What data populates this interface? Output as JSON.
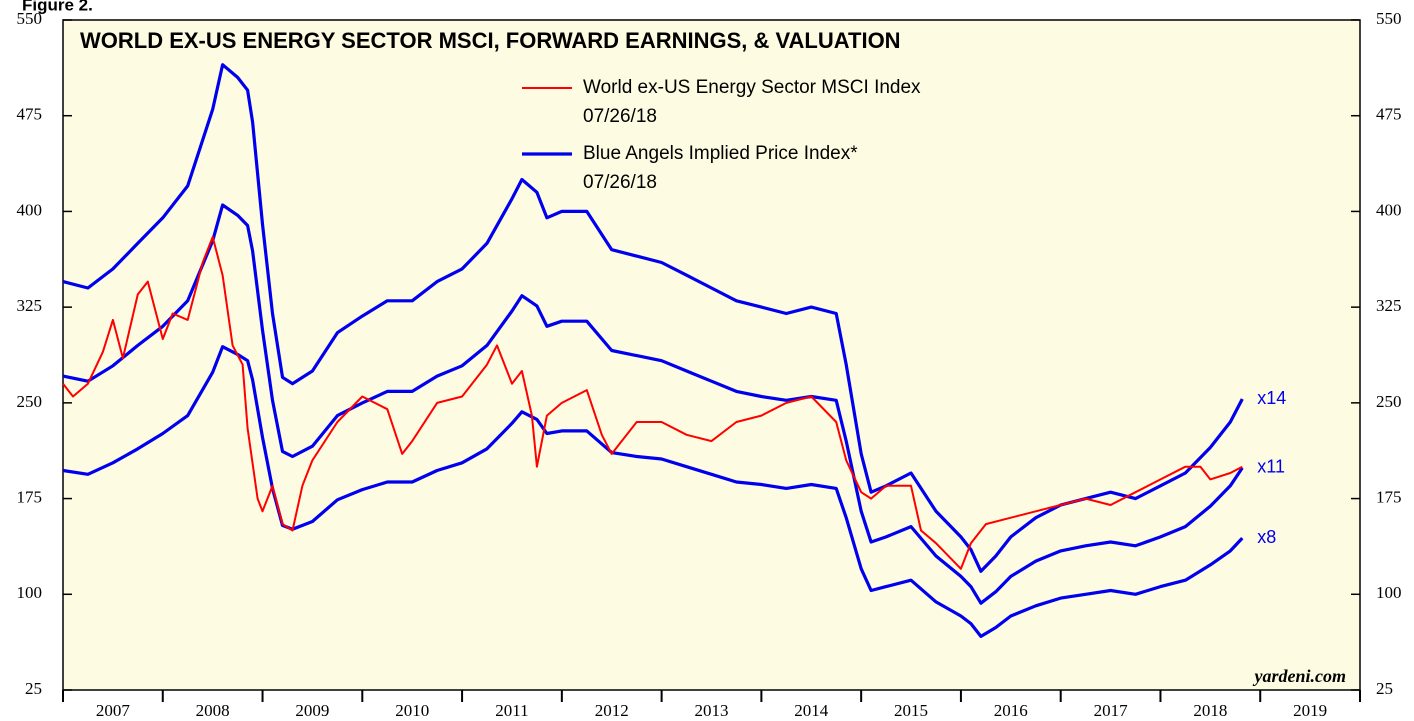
{
  "figure_label": "Figure 2.",
  "chart_data": {
    "type": "line",
    "title": "WORLD EX-US ENERGY SECTOR MSCI, FORWARD EARNINGS, & VALUATION",
    "source": "yardeni.com",
    "xlim": [
      2007,
      2020
    ],
    "xticks": [
      2007,
      2008,
      2009,
      2010,
      2011,
      2012,
      2013,
      2014,
      2015,
      2016,
      2017,
      2018,
      2019,
      2020
    ],
    "year_labels": [
      {
        "value": 2007.5,
        "label": "2007"
      },
      {
        "value": 2008.5,
        "label": "2008"
      },
      {
        "value": 2009.5,
        "label": "2009"
      },
      {
        "value": 2010.5,
        "label": "2010"
      },
      {
        "value": 2011.5,
        "label": "2011"
      },
      {
        "value": 2012.5,
        "label": "2012"
      },
      {
        "value": 2013.5,
        "label": "2013"
      },
      {
        "value": 2014.5,
        "label": "2014"
      },
      {
        "value": 2015.5,
        "label": "2015"
      },
      {
        "value": 2016.5,
        "label": "2016"
      },
      {
        "value": 2017.5,
        "label": "2017"
      },
      {
        "value": 2018.5,
        "label": "2018"
      },
      {
        "value": 2019.5,
        "label": "2019"
      }
    ],
    "ylim": [
      25,
      550
    ],
    "yticks": [
      25,
      100,
      175,
      250,
      325,
      400,
      475,
      550
    ],
    "y2lim": [
      25,
      550
    ],
    "y2ticks": [
      25,
      100,
      175,
      250,
      325,
      400,
      475,
      550
    ],
    "series": [
      {
        "name": "World ex-US Energy Sector MSCI Index",
        "date": "07/26/18",
        "color": "#ff0000",
        "x": [
          2007.0,
          2007.1,
          2007.25,
          2007.4,
          2007.5,
          2007.6,
          2007.75,
          2007.85,
          2008.0,
          2008.1,
          2008.25,
          2008.4,
          2008.5,
          2008.6,
          2008.7,
          2008.8,
          2008.85,
          2008.95,
          2009.0,
          2009.1,
          2009.2,
          2009.3,
          2009.4,
          2009.5,
          2009.75,
          2010.0,
          2010.25,
          2010.4,
          2010.5,
          2010.75,
          2011.0,
          2011.25,
          2011.35,
          2011.5,
          2011.6,
          2011.7,
          2011.75,
          2011.85,
          2012.0,
          2012.25,
          2012.4,
          2012.5,
          2012.75,
          2013.0,
          2013.25,
          2013.5,
          2013.75,
          2014.0,
          2014.25,
          2014.5,
          2014.75,
          2014.85,
          2015.0,
          2015.1,
          2015.25,
          2015.5,
          2015.6,
          2015.75,
          2016.0,
          2016.1,
          2016.25,
          2016.5,
          2016.75,
          2017.0,
          2017.25,
          2017.5,
          2017.75,
          2018.0,
          2018.25,
          2018.4,
          2018.5,
          2018.7,
          2018.82
        ],
        "values": [
          265,
          255,
          265,
          290,
          315,
          285,
          335,
          345,
          300,
          320,
          315,
          360,
          380,
          350,
          295,
          280,
          230,
          175,
          165,
          185,
          155,
          150,
          185,
          205,
          235,
          255,
          245,
          210,
          220,
          250,
          255,
          280,
          295,
          265,
          275,
          240,
          200,
          240,
          250,
          260,
          225,
          210,
          235,
          235,
          225,
          220,
          235,
          240,
          250,
          255,
          235,
          205,
          180,
          175,
          185,
          185,
          150,
          140,
          120,
          140,
          155,
          160,
          165,
          170,
          175,
          170,
          180,
          190,
          200,
          200,
          190,
          195,
          200
        ]
      },
      {
        "name": "Blue Angels Implied Price Index*",
        "date": "07/26/18",
        "label": "x14",
        "color": "#0000ee",
        "x": [
          2007.0,
          2007.25,
          2007.5,
          2007.75,
          2008.0,
          2008.25,
          2008.5,
          2008.6,
          2008.75,
          2008.85,
          2008.9,
          2009.0,
          2009.1,
          2009.2,
          2009.3,
          2009.5,
          2009.75,
          2010.0,
          2010.25,
          2010.5,
          2010.75,
          2011.0,
          2011.25,
          2011.5,
          2011.6,
          2011.75,
          2011.85,
          2012.0,
          2012.25,
          2012.5,
          2012.75,
          2013.0,
          2013.25,
          2013.5,
          2013.75,
          2014.0,
          2014.25,
          2014.5,
          2014.75,
          2014.85,
          2015.0,
          2015.1,
          2015.25,
          2015.5,
          2015.75,
          2016.0,
          2016.1,
          2016.2,
          2016.35,
          2016.5,
          2016.75,
          2017.0,
          2017.25,
          2017.5,
          2017.75,
          2018.0,
          2018.25,
          2018.5,
          2018.7,
          2018.82
        ],
        "values": [
          345,
          340,
          355,
          375,
          395,
          420,
          480,
          515,
          505,
          495,
          470,
          390,
          320,
          270,
          265,
          275,
          305,
          318,
          330,
          330,
          345,
          355,
          375,
          410,
          425,
          415,
          395,
          400,
          400,
          370,
          365,
          360,
          350,
          340,
          330,
          325,
          320,
          325,
          320,
          280,
          210,
          180,
          185,
          195,
          165,
          145,
          135,
          118,
          130,
          145,
          160,
          170,
          175,
          180,
          175,
          185,
          195,
          215,
          235,
          253
        ]
      },
      {
        "label": "x11",
        "color": "#0000ee",
        "x": [
          2007.0,
          2007.25,
          2007.5,
          2007.75,
          2008.0,
          2008.25,
          2008.5,
          2008.6,
          2008.75,
          2008.85,
          2008.9,
          2009.0,
          2009.1,
          2009.2,
          2009.3,
          2009.5,
          2009.75,
          2010.0,
          2010.25,
          2010.5,
          2010.75,
          2011.0,
          2011.25,
          2011.5,
          2011.6,
          2011.75,
          2011.85,
          2012.0,
          2012.25,
          2012.5,
          2012.75,
          2013.0,
          2013.25,
          2013.5,
          2013.75,
          2014.0,
          2014.25,
          2014.5,
          2014.75,
          2014.85,
          2015.0,
          2015.1,
          2015.25,
          2015.5,
          2015.75,
          2016.0,
          2016.1,
          2016.2,
          2016.35,
          2016.5,
          2016.75,
          2017.0,
          2017.25,
          2017.5,
          2017.75,
          2018.0,
          2018.25,
          2018.5,
          2018.7,
          2018.82
        ],
        "values": [
          271,
          267,
          279,
          295,
          310,
          330,
          377,
          405,
          397,
          389,
          369,
          307,
          252,
          212,
          208,
          216,
          240,
          250,
          259,
          259,
          271,
          279,
          295,
          322,
          334,
          326,
          310,
          314,
          314,
          291,
          287,
          283,
          275,
          267,
          259,
          255,
          252,
          255,
          252,
          220,
          165,
          141,
          145,
          153,
          130,
          114,
          106,
          93,
          102,
          114,
          126,
          134,
          138,
          141,
          138,
          145,
          153,
          169,
          185,
          199
        ]
      },
      {
        "label": "x8",
        "color": "#0000ee",
        "x": [
          2007.0,
          2007.25,
          2007.5,
          2007.75,
          2008.0,
          2008.25,
          2008.5,
          2008.6,
          2008.75,
          2008.85,
          2008.9,
          2009.0,
          2009.1,
          2009.2,
          2009.3,
          2009.5,
          2009.75,
          2010.0,
          2010.25,
          2010.5,
          2010.75,
          2011.0,
          2011.25,
          2011.5,
          2011.6,
          2011.75,
          2011.85,
          2012.0,
          2012.25,
          2012.5,
          2012.75,
          2013.0,
          2013.25,
          2013.5,
          2013.75,
          2014.0,
          2014.25,
          2014.5,
          2014.75,
          2014.85,
          2015.0,
          2015.1,
          2015.25,
          2015.5,
          2015.75,
          2016.0,
          2016.1,
          2016.2,
          2016.35,
          2016.5,
          2016.75,
          2017.0,
          2017.25,
          2017.5,
          2017.75,
          2018.0,
          2018.25,
          2018.5,
          2018.7,
          2018.82
        ],
        "values": [
          197,
          194,
          203,
          214,
          226,
          240,
          274,
          294,
          288,
          283,
          268,
          223,
          183,
          154,
          151,
          157,
          174,
          182,
          188,
          188,
          197,
          203,
          214,
          234,
          243,
          237,
          226,
          228,
          228,
          211,
          208,
          206,
          200,
          194,
          188,
          186,
          183,
          186,
          183,
          160,
          120,
          103,
          106,
          111,
          94,
          83,
          77,
          67,
          74,
          83,
          91,
          97,
          100,
          103,
          100,
          106,
          111,
          123,
          134,
          144
        ]
      }
    ]
  }
}
